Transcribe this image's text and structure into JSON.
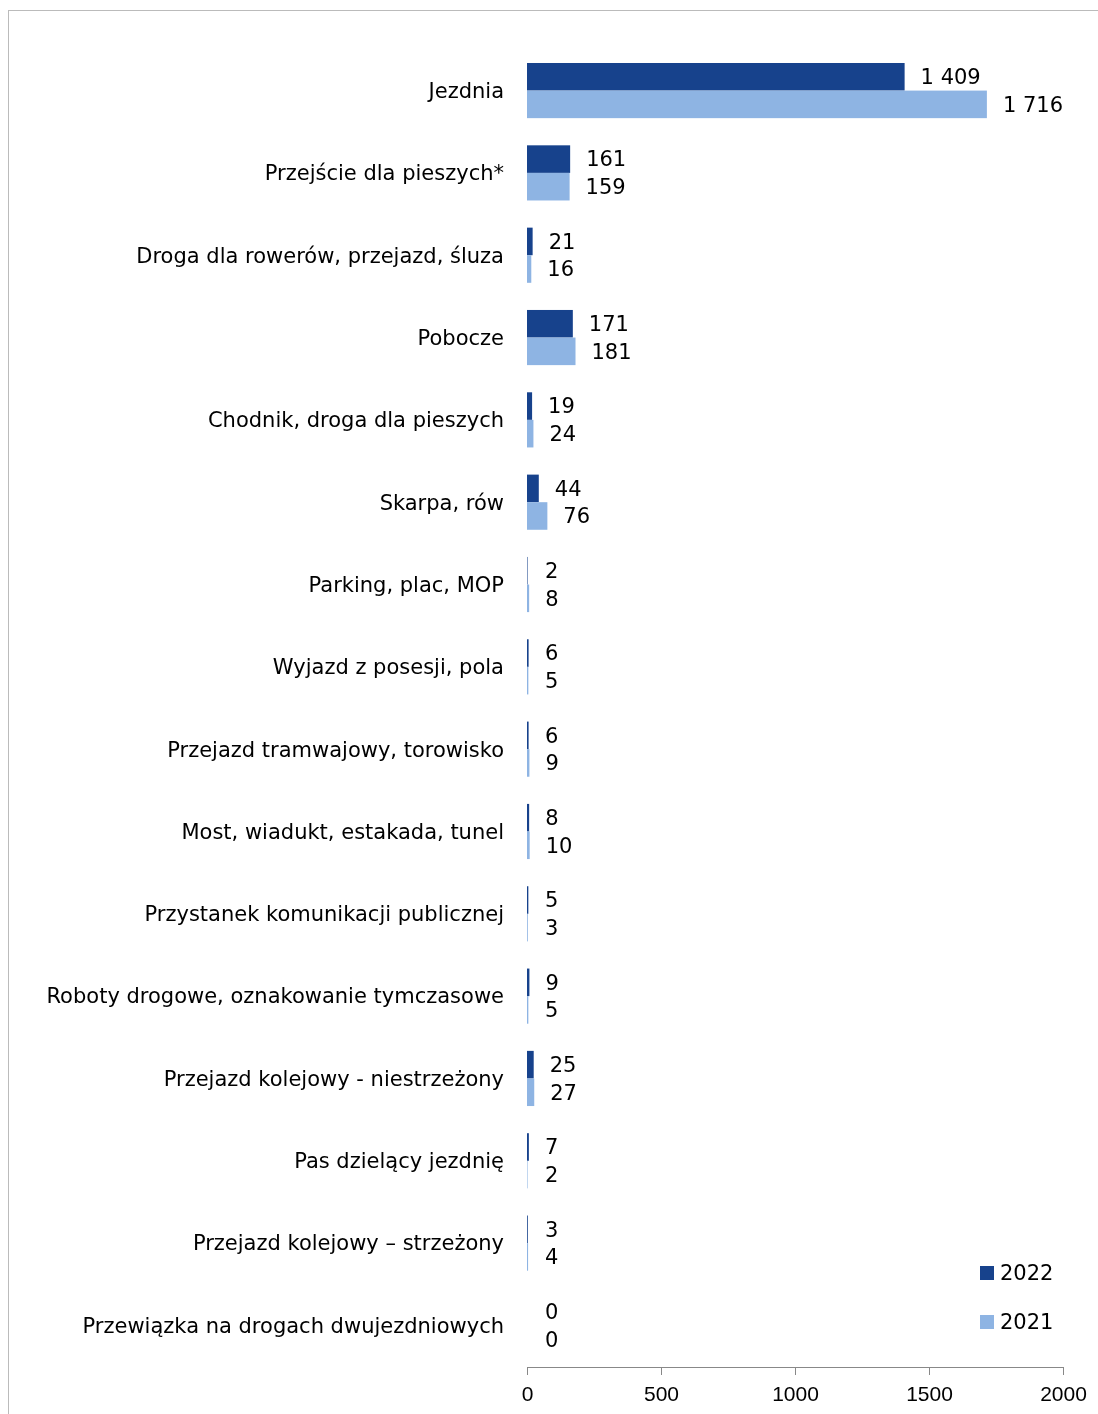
{
  "chart_data": {
    "type": "bar",
    "orientation": "horizontal",
    "categories": [
      "Jezdnia",
      "Przejście dla pieszych*",
      "Droga dla rowerów, przejazd, śluza",
      "Pobocze",
      "Chodnik, droga dla pieszych",
      "Skarpa, rów",
      "Parking, plac, MOP",
      "Wyjazd z posesji, pola",
      "Przejazd tramwajowy, torowisko",
      "Most, wiadukt, estakada, tunel",
      "Przystanek komunikacji publicznej",
      "Roboty drogowe, oznakowanie tymczasowe",
      "Przejazd kolejowy - niestrzeżony",
      "Pas dzielący jezdnię",
      "Przejazd kolejowy – strzeżony",
      "Przewiązka na drogach dwujezdniowych"
    ],
    "series": [
      {
        "name": "2022",
        "color": "#17428c",
        "values": [
          1409,
          161,
          21,
          171,
          19,
          44,
          2,
          6,
          6,
          8,
          5,
          9,
          25,
          7,
          3,
          0
        ],
        "value_labels": [
          "1 409",
          "161",
          "21",
          "171",
          "19",
          "44",
          "2",
          "6",
          "6",
          "8",
          "5",
          "9",
          "25",
          "7",
          "3",
          "0"
        ]
      },
      {
        "name": "2021",
        "color": "#8eb4e3",
        "values": [
          1716,
          159,
          16,
          181,
          24,
          76,
          8,
          5,
          9,
          10,
          3,
          5,
          27,
          2,
          4,
          0
        ],
        "value_labels": [
          "1 716",
          "159",
          "16",
          "181",
          "24",
          "76",
          "8",
          "5",
          "9",
          "10",
          "3",
          "5",
          "27",
          "2",
          "4",
          "0"
        ]
      }
    ],
    "xlim": [
      0,
      2000
    ],
    "xticks": [
      0,
      500,
      1000,
      1500,
      2000
    ],
    "legend": "bottom right",
    "grid": false
  }
}
